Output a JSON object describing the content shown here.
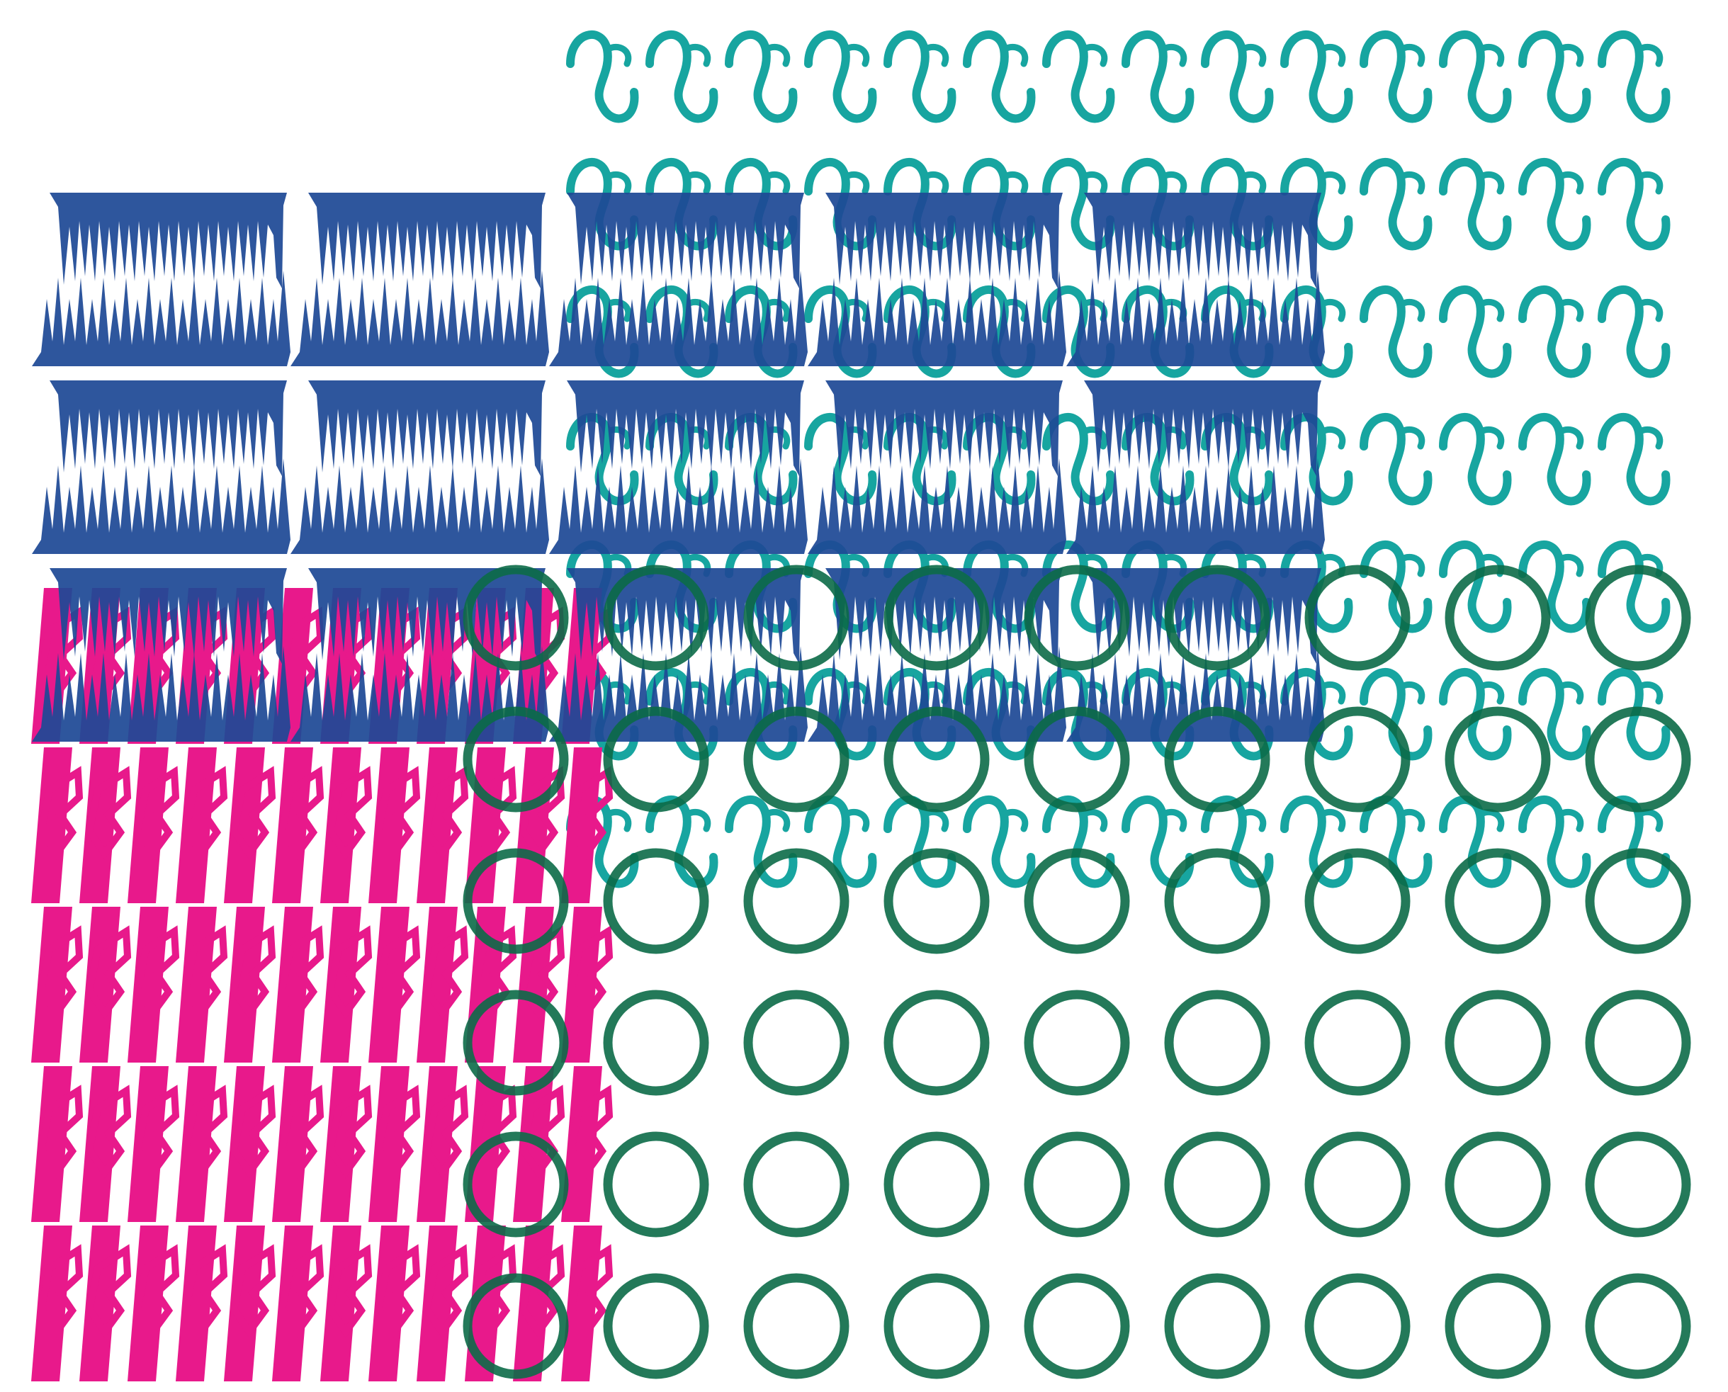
{
  "canvas": {
    "background": "#ffffff"
  },
  "layers": [
    {
      "name": "teal-swirl-pattern",
      "motif": "s-swirl",
      "color": "#17a5a0",
      "rows": 7,
      "cols": 14
    },
    {
      "name": "magenta-glyph-pattern",
      "motif": "angular-glyph",
      "color": "#e8198b",
      "rows": 5,
      "cols": 12
    },
    {
      "name": "blue-comb-pattern",
      "motif": "comb-tile",
      "color": "#1f4a96",
      "rows": 3,
      "cols": 5
    },
    {
      "name": "green-ring-pattern",
      "motif": "ring",
      "color": "#0c6b48",
      "rows": 6,
      "cols": 9
    }
  ]
}
